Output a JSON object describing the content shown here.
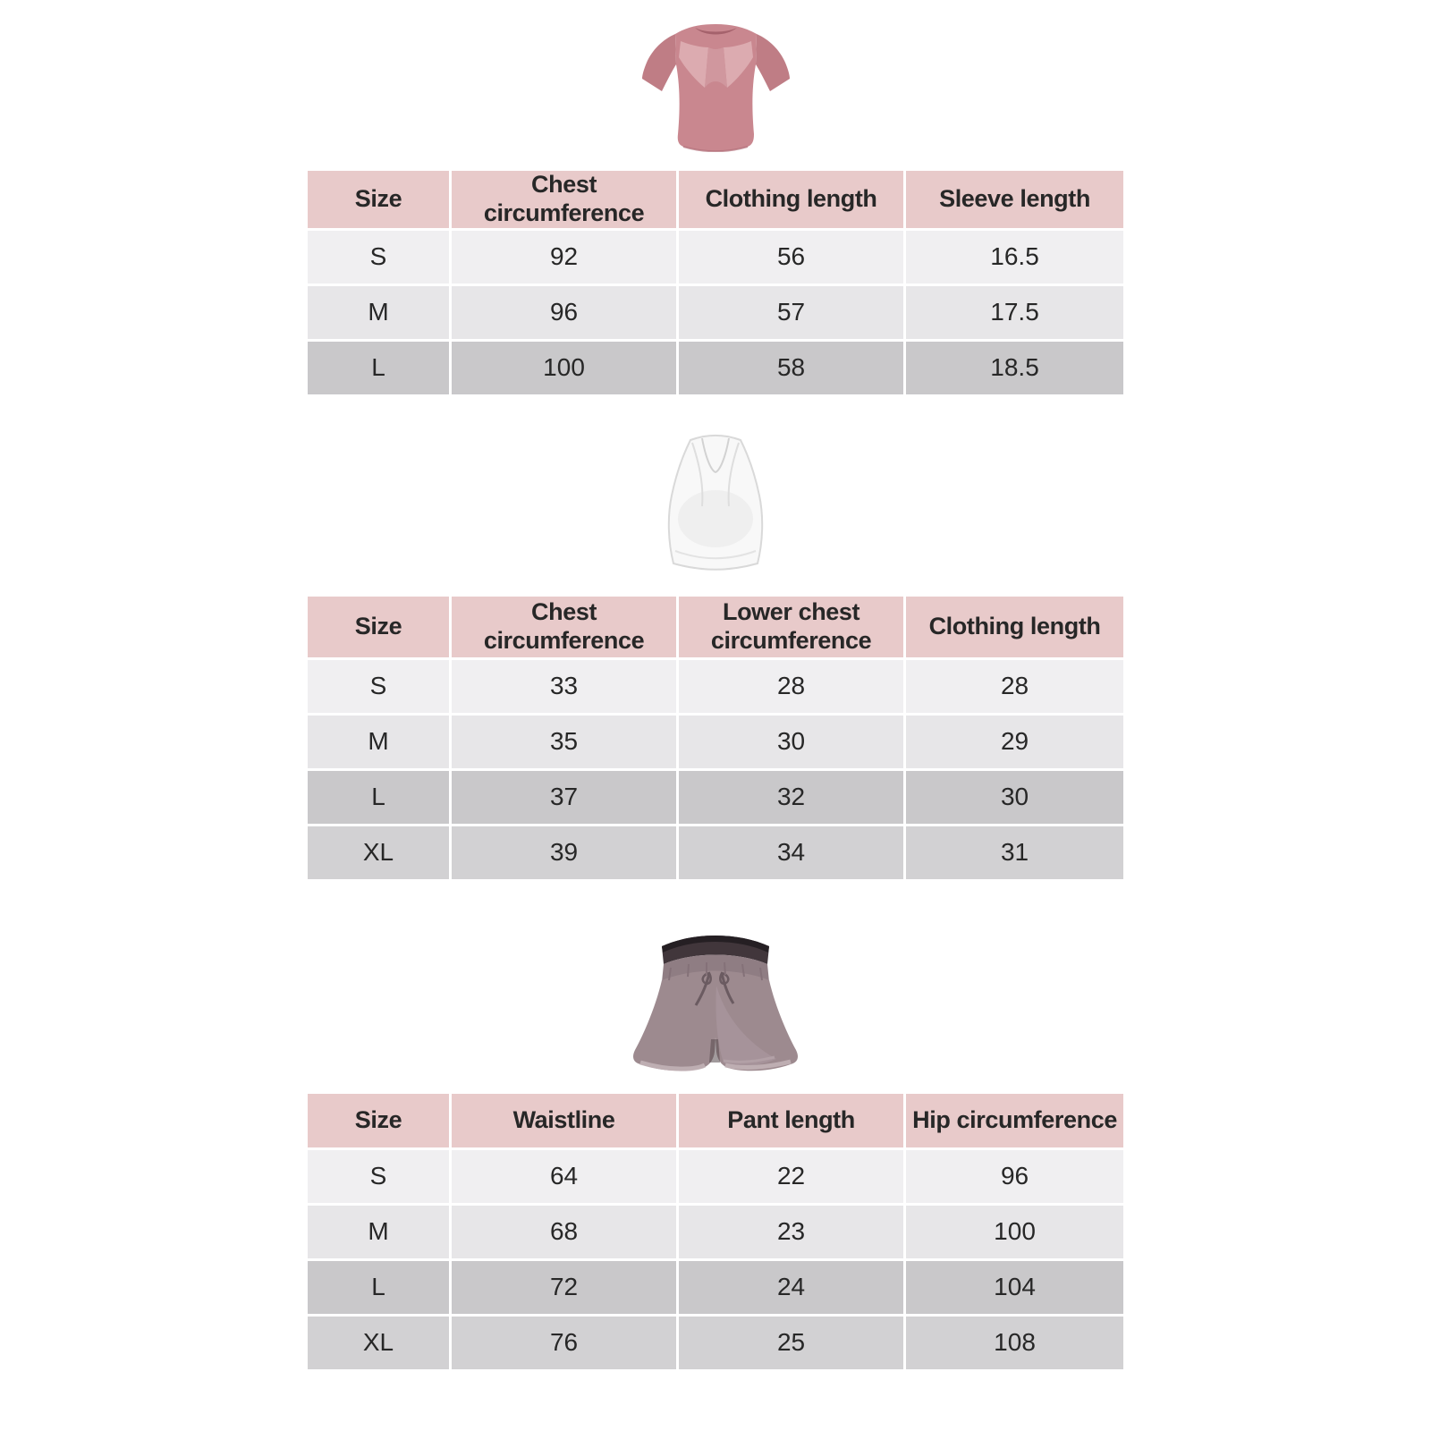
{
  "canvas": {
    "background": "#ffffff"
  },
  "colors": {
    "header_bg": "#e8caca",
    "row_bg": [
      "#f0eff1",
      "#e7e6e8",
      "#c9c8ca",
      "#d2d1d3"
    ],
    "text": "#272727",
    "tshirt_main": "#c9878f",
    "tshirt_sleeve": "#bf7d85",
    "tshirt_mesh": "#dcabb0",
    "tshirt_mesh_center": "#d0979e",
    "bra_main": "#f8f8f8",
    "bra_outline": "#d9d9d9",
    "shorts_main": "#9d8a8f",
    "shorts_waistband": "#41363b",
    "shorts_trim": "#c2b1b6"
  },
  "products": [
    {
      "id": "tshirt",
      "alt": "Pink short-sleeve sports top, open-back view"
    },
    {
      "id": "sports-bra",
      "alt": "White racerback sports bra"
    },
    {
      "id": "shorts",
      "alt": "Grey-mauve drawstring sports shorts with layered hem"
    }
  ],
  "tables": [
    {
      "id": "top-size-table",
      "headers": [
        "Size",
        "Chest circumference",
        "Clothing length",
        "Sleeve length"
      ],
      "rows": [
        [
          "S",
          "92",
          "56",
          "16.5"
        ],
        [
          "M",
          "96",
          "57",
          "17.5"
        ],
        [
          "L",
          "100",
          "58",
          "18.5"
        ]
      ]
    },
    {
      "id": "bra-size-table",
      "headers": [
        "Size",
        "Chest circumference",
        "Lower chest circumference",
        "Clothing length"
      ],
      "rows": [
        [
          "S",
          "33",
          "28",
          "28"
        ],
        [
          "M",
          "35",
          "30",
          "29"
        ],
        [
          "L",
          "37",
          "32",
          "30"
        ],
        [
          "XL",
          "39",
          "34",
          "31"
        ]
      ]
    },
    {
      "id": "shorts-size-table",
      "headers": [
        "Size",
        "Waistline",
        "Pant length",
        "Hip circumference"
      ],
      "rows": [
        [
          "S",
          "64",
          "22",
          "96"
        ],
        [
          "M",
          "68",
          "23",
          "100"
        ],
        [
          "L",
          "72",
          "24",
          "104"
        ],
        [
          "XL",
          "76",
          "25",
          "108"
        ]
      ]
    }
  ]
}
